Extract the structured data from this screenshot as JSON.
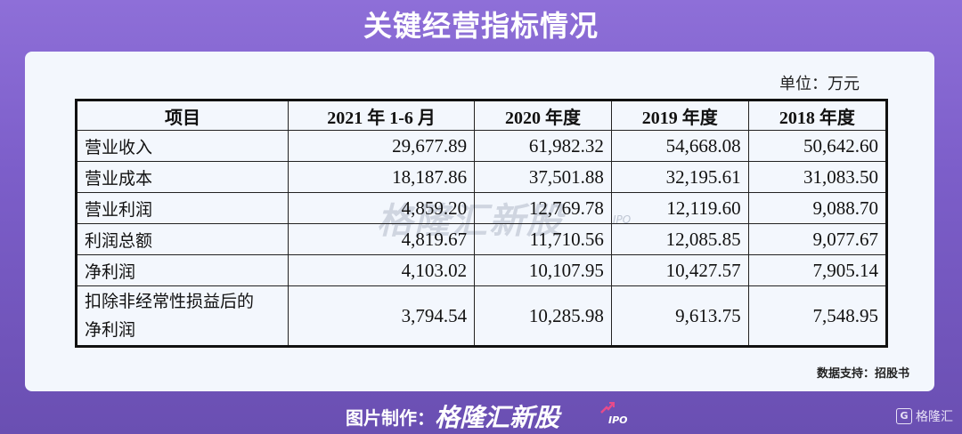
{
  "title": "关键经营指标情况",
  "unit": "单位：万元",
  "table": {
    "headers": [
      "项目",
      "2021 年 1-6 月",
      "2020 年度",
      "2019 年度",
      "2018 年度"
    ],
    "rows": [
      {
        "label": "营业收入",
        "values": [
          "29,677.89",
          "61,982.32",
          "54,668.08",
          "50,642.60"
        ]
      },
      {
        "label": "营业成本",
        "values": [
          "18,187.86",
          "37,501.88",
          "32,195.61",
          "31,083.50"
        ]
      },
      {
        "label": "营业利润",
        "values": [
          "4,859.20",
          "12,769.78",
          "12,119.60",
          "9,088.70"
        ]
      },
      {
        "label": "利润总额",
        "values": [
          "4,819.67",
          "11,710.56",
          "12,085.85",
          "9,077.67"
        ]
      },
      {
        "label": "净利润",
        "values": [
          "4,103.02",
          "10,107.95",
          "10,427.57",
          "7,905.14"
        ]
      },
      {
        "label_line1": "扣除非经常性损益后的",
        "label_line2": "净利润",
        "values": [
          "3,794.54",
          "10,285.98",
          "9,613.75",
          "7,548.95"
        ]
      }
    ]
  },
  "source": "数据支持：招股书",
  "watermark": {
    "text": "格隆汇新股",
    "sub": "IPO"
  },
  "footer": {
    "credit": "图片制作：",
    "brand": "格隆汇新股",
    "brand_sub": "IPO"
  },
  "corner": {
    "icon": "G",
    "text": "格隆汇"
  }
}
